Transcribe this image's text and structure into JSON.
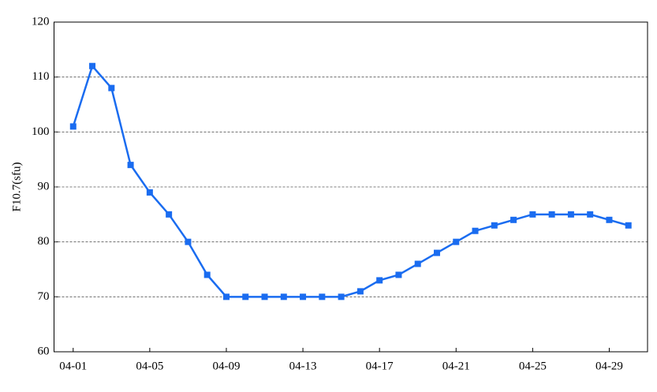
{
  "chart_data": {
    "type": "line",
    "y_label": "F10.7(sfu)",
    "categories": [
      "04-01",
      null,
      null,
      null,
      "04-05",
      null,
      null,
      null,
      "04-09",
      null,
      null,
      null,
      "04-13",
      null,
      null,
      null,
      "04-17",
      null,
      null,
      null,
      "04-21",
      null,
      null,
      null,
      "04-25",
      null,
      null,
      null,
      "04-29",
      null
    ],
    "values": [
      101,
      112,
      108,
      94,
      89,
      85,
      80,
      74,
      70,
      70,
      70,
      70,
      70,
      70,
      70,
      71,
      73,
      74,
      76,
      78,
      80,
      82,
      83,
      84,
      85,
      85,
      85,
      85,
      84,
      83
    ],
    "color": "#1a6cf0",
    "ylim": [
      60,
      120
    ],
    "yticks": [
      60,
      70,
      80,
      90,
      100,
      110,
      120
    ],
    "grid": true
  }
}
